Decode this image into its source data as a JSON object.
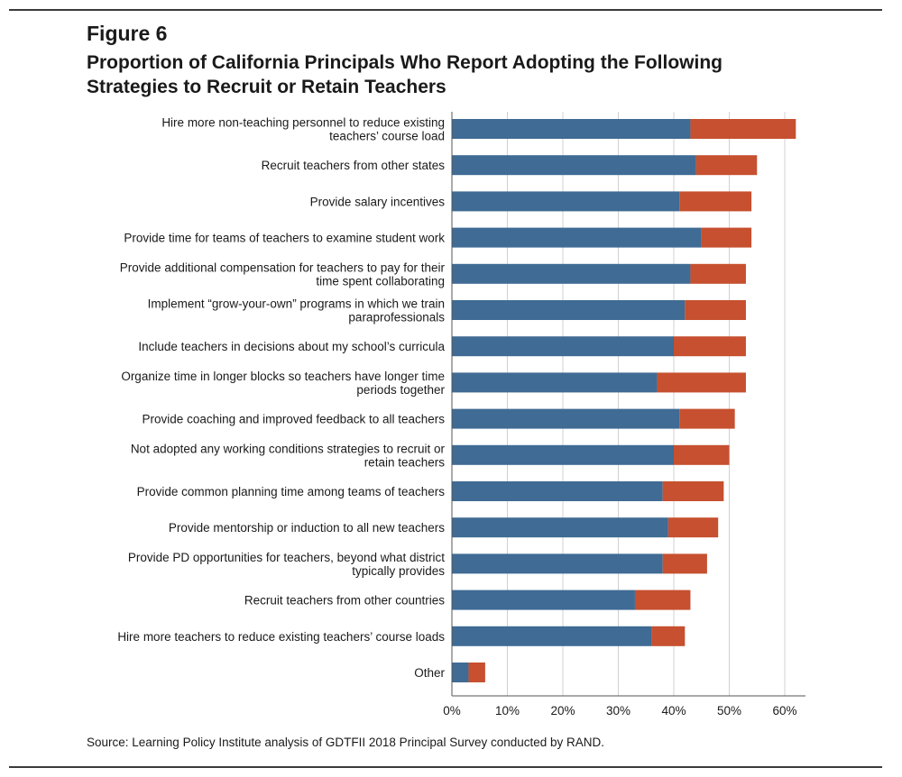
{
  "figure_label": "Figure 6",
  "title_line1": "Proportion of California Principals Who Report Adopting the Following",
  "title_line2": "Strategies to Recruit or Retain Teachers",
  "source": "Source: Learning Policy Institute analysis of GDTFII 2018 Principal Survey conducted by RAND.",
  "colors": {
    "series1": "#3f6b94",
    "series2": "#c6502f",
    "grid": "#d0d0d0",
    "axis": "#555555"
  },
  "chart_data": {
    "type": "bar",
    "orientation": "horizontal",
    "stacked": true,
    "title": "",
    "xlabel": "",
    "ylabel": "",
    "xlim": [
      0,
      64
    ],
    "x_ticks": [
      "0%",
      "10%",
      "20%",
      "30%",
      "40%",
      "50%",
      "60%"
    ],
    "grid": true,
    "legend": "none",
    "categories": [
      [
        "Hire more non-teaching personnel to reduce existing",
        "teachers’ course load"
      ],
      [
        "Recruit teachers from other states"
      ],
      [
        "Provide salary incentives"
      ],
      [
        "Provide time for teams of teachers to examine student work"
      ],
      [
        "Provide additional compensation for teachers to pay for their",
        "time spent collaborating"
      ],
      [
        "Implement “grow-your-own” programs in which we train",
        "paraprofessionals"
      ],
      [
        "Include teachers in decisions about my school’s curricula"
      ],
      [
        "Organize time in longer blocks so teachers have longer time",
        "periods together"
      ],
      [
        "Provide coaching and improved feedback to all teachers"
      ],
      [
        "Not adopted any working conditions strategies to recruit or",
        "retain teachers"
      ],
      [
        "Provide common planning time among teams of teachers"
      ],
      [
        "Provide mentorship or induction to all new teachers"
      ],
      [
        "Provide PD opportunities for teachers, beyond what district",
        "typically provides"
      ],
      [
        "Recruit teachers from other countries"
      ],
      [
        "Hire more teachers to reduce existing teachers’ course loads"
      ],
      [
        "Other"
      ]
    ],
    "series": [
      {
        "values": [
          43,
          44,
          41,
          45,
          43,
          42,
          40,
          37,
          41,
          40,
          38,
          39,
          38,
          33,
          36,
          3
        ]
      },
      {
        "values": [
          19,
          11,
          13,
          9,
          10,
          11,
          13,
          16,
          10,
          10,
          11,
          9,
          8,
          10,
          6,
          3
        ]
      }
    ]
  }
}
